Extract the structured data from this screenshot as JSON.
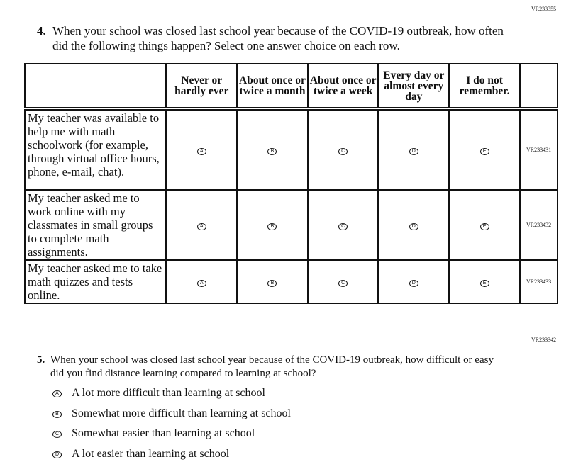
{
  "q4": {
    "code": "VR233355",
    "number": "4.",
    "text": "When your school was closed last school year because of the COVID-19 outbreak, how often did the following things happen? Select one answer choice on each row.",
    "columns": [
      "Never or hardly ever",
      "About once or twice a month",
      "About once or twice a week",
      "Every day or almost every day",
      "I do not remember."
    ],
    "choice_letters": [
      "A",
      "B",
      "C",
      "D",
      "E"
    ],
    "rows": [
      {
        "text": "My teacher was available to help me with math schoolwork (for example, through virtual office hours, phone, e-mail, chat).",
        "code": "VR233431"
      },
      {
        "text": "My teacher asked me to work online with my classmates in small groups to complete math assignments.",
        "code": "VR233432"
      },
      {
        "text": "My teacher asked me to take math quizzes and tests online.",
        "code": "VR233433"
      }
    ]
  },
  "q5": {
    "code": "VR233342",
    "number": "5.",
    "text": "When your school was closed last school year because of the COVID-19 outbreak, how difficult or easy did you find distance learning compared to learning at school?",
    "options": [
      {
        "letter": "A",
        "text": "A lot more difficult than learning at school"
      },
      {
        "letter": "B",
        "text": "Somewhat more difficult than learning at school"
      },
      {
        "letter": "C",
        "text": "Somewhat easier than learning at school"
      },
      {
        "letter": "D",
        "text": "A lot easier than learning at school"
      }
    ]
  }
}
